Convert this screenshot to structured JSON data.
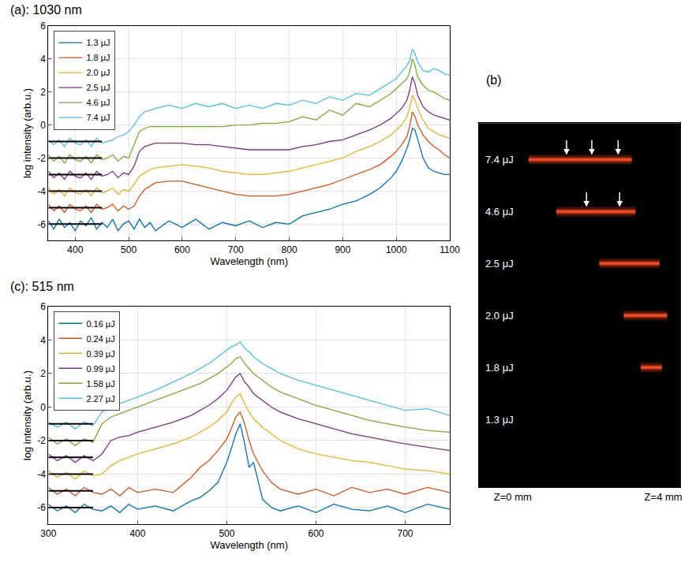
{
  "chart_data": [
    {
      "type": "line",
      "title": "(a): 1030 nm",
      "x_label": "Wavelength (nm)",
      "y_label": "log intensity (arb.u.)",
      "xlim": [
        350,
        1100
      ],
      "xticks": [
        400,
        500,
        600,
        700,
        800,
        900,
        1000,
        1100
      ],
      "ylim": [
        -7,
        6
      ],
      "yticks": [
        -6,
        -4,
        -2,
        0,
        2,
        4,
        6
      ],
      "grid": true,
      "legend": "upper left",
      "baseline_x": [
        350,
        450
      ],
      "x": [
        350,
        360,
        370,
        380,
        390,
        400,
        410,
        420,
        430,
        440,
        450,
        460,
        470,
        480,
        490,
        500,
        510,
        520,
        530,
        540,
        550,
        575,
        600,
        625,
        650,
        675,
        700,
        725,
        750,
        775,
        800,
        825,
        850,
        875,
        900,
        925,
        950,
        970,
        990,
        1000,
        1010,
        1020,
        1025,
        1030,
        1035,
        1040,
        1050,
        1060,
        1070,
        1080,
        1090,
        1100
      ],
      "series": [
        {
          "name": "1.3 μJ",
          "color": "#0072BD",
          "baseline": -6,
          "values": [
            -5.8,
            -6.3,
            -5.7,
            -6.2,
            -5.9,
            -6.4,
            -5.8,
            -6.1,
            -5.6,
            -6.3,
            -5.9,
            -6.2,
            -5.7,
            -6.4,
            -6.0,
            -5.8,
            -6.3,
            -5.7,
            -6.2,
            -5.9,
            -6.4,
            -5.8,
            -6.2,
            -5.7,
            -6.3,
            -5.9,
            -6.1,
            -5.8,
            -6.2,
            -5.9,
            -6.0,
            -5.5,
            -5.3,
            -5.1,
            -4.8,
            -4.6,
            -4.2,
            -3.8,
            -3.2,
            -2.8,
            -2.2,
            -1.4,
            -0.9,
            -0.2,
            -0.3,
            -0.9,
            -2.0,
            -2.6,
            -2.8,
            -2.9,
            -3.0,
            -3.0
          ]
        },
        {
          "name": "1.8 μJ",
          "color": "#D95319",
          "baseline": -5,
          "values": [
            -4.8,
            -5.2,
            -4.9,
            -5.3,
            -4.8,
            -5.1,
            -5.2,
            -4.9,
            -5.3,
            -4.8,
            -5.1,
            -5.0,
            -4.8,
            -5.2,
            -4.9,
            -5.1,
            -4.9,
            -4.3,
            -3.9,
            -3.7,
            -3.5,
            -3.4,
            -3.4,
            -3.6,
            -3.8,
            -4.0,
            -4.2,
            -4.3,
            -4.3,
            -4.3,
            -4.2,
            -4.0,
            -3.8,
            -3.6,
            -3.3,
            -3.0,
            -2.7,
            -2.4,
            -1.9,
            -1.6,
            -1.2,
            -0.7,
            -0.1,
            0.8,
            0.5,
            0.0,
            -0.6,
            -1.0,
            -1.3,
            -1.5,
            -1.8,
            -2.0
          ]
        },
        {
          "name": "2.0 μJ",
          "color": "#EDB120",
          "baseline": -4,
          "values": [
            -3.8,
            -4.2,
            -3.9,
            -4.3,
            -3.8,
            -4.1,
            -4.2,
            -3.9,
            -4.3,
            -3.8,
            -4.1,
            -4.0,
            -3.8,
            -4.2,
            -3.9,
            -4.0,
            -3.6,
            -3.1,
            -2.9,
            -2.7,
            -2.6,
            -2.5,
            -2.4,
            -2.5,
            -2.6,
            -2.8,
            -2.9,
            -3.0,
            -3.0,
            -2.9,
            -2.8,
            -2.6,
            -2.4,
            -2.2,
            -2.0,
            -1.6,
            -1.3,
            -1.0,
            -0.6,
            -0.3,
            0.0,
            0.5,
            1.0,
            1.8,
            1.5,
            1.0,
            0.3,
            -0.2,
            -0.4,
            -0.6,
            -0.7,
            -0.8
          ]
        },
        {
          "name": "2.5 μJ",
          "color": "#7E2F8E",
          "baseline": -3,
          "values": [
            -2.8,
            -3.2,
            -2.9,
            -3.3,
            -2.8,
            -3.1,
            -3.2,
            -2.9,
            -3.3,
            -2.8,
            -3.1,
            -3.0,
            -2.8,
            -3.2,
            -2.9,
            -3.0,
            -2.5,
            -1.6,
            -1.3,
            -1.2,
            -1.1,
            -1.1,
            -1.1,
            -1.2,
            -1.2,
            -1.3,
            -1.4,
            -1.5,
            -1.5,
            -1.5,
            -1.5,
            -1.3,
            -1.2,
            -1.0,
            -0.9,
            -0.6,
            -0.3,
            0.0,
            0.4,
            0.7,
            1.0,
            1.5,
            2.1,
            2.9,
            2.5,
            1.8,
            1.1,
            0.8,
            0.6,
            0.5,
            0.4,
            0.3
          ]
        },
        {
          "name": "4.6 μJ",
          "color": "#77AC30",
          "baseline": -2,
          "values": [
            -1.8,
            -2.2,
            -1.9,
            -2.3,
            -1.8,
            -2.1,
            -2.2,
            -1.9,
            -2.3,
            -1.8,
            -2.1,
            -2.0,
            -1.8,
            -2.2,
            -1.9,
            -2.0,
            -1.2,
            -0.4,
            -0.2,
            -0.1,
            -0.1,
            -0.1,
            -0.1,
            -0.1,
            -0.1,
            -0.1,
            0.0,
            0.0,
            0.1,
            0.1,
            0.2,
            0.5,
            0.3,
            0.9,
            0.6,
            1.3,
            1.1,
            1.5,
            1.9,
            2.2,
            2.5,
            2.8,
            3.2,
            4.0,
            3.6,
            2.9,
            2.4,
            2.1,
            2.0,
            1.8,
            1.6,
            1.5
          ]
        },
        {
          "name": "7.4 μJ",
          "color": "#4DBEEE",
          "baseline": -1,
          "values": [
            -0.9,
            -1.2,
            -0.9,
            -1.3,
            -0.8,
            -1.1,
            -1.2,
            -0.9,
            -1.3,
            -0.8,
            -1.1,
            -1.0,
            -0.9,
            -0.7,
            -0.6,
            -0.4,
            0.0,
            0.5,
            0.8,
            0.9,
            1.0,
            1.2,
            1.0,
            1.3,
            1.1,
            1.3,
            1.0,
            1.2,
            1.0,
            1.3,
            1.2,
            1.5,
            1.3,
            1.7,
            1.5,
            1.9,
            1.8,
            2.2,
            2.6,
            2.8,
            3.2,
            3.6,
            3.9,
            4.6,
            4.3,
            3.8,
            3.3,
            3.2,
            3.4,
            3.3,
            3.1,
            3.0
          ]
        }
      ]
    },
    {
      "type": "filament",
      "title": "(b)",
      "color": "#ff4a24",
      "xlim": [
        -0.9,
        4.45
      ],
      "xticks": [
        {
          "value": 0,
          "label": "Z=0 mm"
        },
        {
          "value": 4,
          "label": "Z=4 mm"
        }
      ],
      "tick_labels": "x",
      "rows": [
        {
          "label": "7.4 μJ",
          "start": 0.42,
          "end": 3.16,
          "arrows": [
            1.43,
            2.1,
            2.8
          ]
        },
        {
          "label": "4.6 μJ",
          "start": 1.16,
          "end": 3.26,
          "arrows": [
            1.96,
            2.84
          ]
        },
        {
          "label": "2.5 μJ",
          "start": 2.3,
          "end": 3.9,
          "arrows": []
        },
        {
          "label": "2.0 μJ",
          "start": 2.95,
          "end": 4.1,
          "arrows": []
        },
        {
          "label": "1.8 μJ",
          "start": 3.4,
          "end": 3.96,
          "arrows": []
        },
        {
          "label": "1.3 μJ",
          "start": null,
          "end": null,
          "arrows": []
        }
      ]
    },
    {
      "type": "line",
      "title": "(c): 515 nm",
      "x_label": "Wavelength (nm)",
      "y_label": "log intensity (arb.u.)",
      "xlim": [
        300,
        750
      ],
      "xticks": [
        300,
        400,
        500,
        600,
        700
      ],
      "ylim": [
        -7,
        6
      ],
      "yticks": [
        -6,
        -4,
        -2,
        0,
        2,
        4,
        6
      ],
      "grid": true,
      "legend": "upper left",
      "baseline_x": [
        300,
        350
      ],
      "x": [
        300,
        310,
        320,
        330,
        340,
        350,
        360,
        370,
        380,
        390,
        400,
        420,
        440,
        460,
        470,
        480,
        490,
        500,
        505,
        510,
        515,
        520,
        525,
        530,
        540,
        550,
        560,
        580,
        600,
        620,
        640,
        660,
        680,
        700,
        725,
        750
      ],
      "series": [
        {
          "name": "0.16 μJ",
          "color": "#0072BD",
          "baseline": -6,
          "values": [
            -5.8,
            -6.2,
            -5.9,
            -6.3,
            -5.8,
            -6.1,
            -6.2,
            -5.9,
            -6.3,
            -5.8,
            -6.1,
            -5.9,
            -6.2,
            -5.6,
            -5.4,
            -5.0,
            -4.5,
            -3.3,
            -2.5,
            -1.6,
            -1.0,
            -2.2,
            -3.6,
            -3.3,
            -5.5,
            -6.0,
            -6.2,
            -5.9,
            -6.3,
            -5.8,
            -6.1,
            -6.2,
            -5.9,
            -6.3,
            -5.8,
            -6.1
          ]
        },
        {
          "name": "0.24 μJ",
          "color": "#D95319",
          "baseline": -5,
          "values": [
            -4.8,
            -5.2,
            -4.9,
            -5.3,
            -4.8,
            -5.1,
            -5.2,
            -4.9,
            -5.3,
            -4.8,
            -5.1,
            -4.9,
            -5.1,
            -4.2,
            -3.6,
            -3.2,
            -2.6,
            -1.9,
            -1.3,
            -0.6,
            -0.3,
            -1.0,
            -2.0,
            -2.8,
            -3.8,
            -4.5,
            -4.9,
            -5.2,
            -4.9,
            -5.3,
            -4.8,
            -5.1,
            -4.9,
            -5.2,
            -4.8,
            -5.1
          ]
        },
        {
          "name": "0.39 μJ",
          "color": "#EDB120",
          "baseline": -4,
          "values": [
            -3.8,
            -4.2,
            -3.9,
            -4.3,
            -3.8,
            -4.1,
            -4.0,
            -3.5,
            -3.2,
            -3.0,
            -2.8,
            -2.5,
            -2.2,
            -1.8,
            -1.5,
            -1.2,
            -0.8,
            -0.3,
            0.2,
            0.6,
            0.8,
            0.2,
            -0.3,
            -0.7,
            -1.2,
            -1.6,
            -2.0,
            -2.5,
            -2.8,
            -3.0,
            -3.2,
            -3.3,
            -3.5,
            -3.7,
            -3.8,
            -4.0
          ]
        },
        {
          "name": "0.99 μJ",
          "color": "#7E2F8E",
          "baseline": -3,
          "values": [
            -2.8,
            -3.2,
            -2.9,
            -3.3,
            -2.9,
            -3.2,
            -2.8,
            -2.0,
            -1.8,
            -1.7,
            -1.5,
            -1.2,
            -0.9,
            -0.5,
            -0.2,
            0.1,
            0.5,
            1.0,
            1.4,
            1.8,
            2.0,
            1.5,
            1.2,
            0.8,
            0.4,
            0.0,
            -0.3,
            -0.7,
            -1.0,
            -1.3,
            -1.6,
            -1.8,
            -2.0,
            -2.2,
            -2.4,
            -2.6
          ]
        },
        {
          "name": "1.58 μJ",
          "color": "#77AC30",
          "baseline": -2,
          "values": [
            -1.8,
            -2.2,
            -1.9,
            -2.3,
            -1.9,
            -2.1,
            -1.0,
            -0.6,
            -0.4,
            -0.2,
            0.0,
            0.4,
            0.8,
            1.2,
            1.4,
            1.7,
            2.0,
            2.4,
            2.6,
            2.9,
            3.0,
            2.6,
            2.3,
            2.0,
            1.6,
            1.2,
            0.9,
            0.5,
            0.1,
            -0.2,
            -0.5,
            -0.8,
            -1.0,
            -1.2,
            -1.4,
            -1.5
          ]
        },
        {
          "name": "2.27 μJ",
          "color": "#4DBEEE",
          "baseline": -1,
          "values": [
            -0.9,
            -1.2,
            -0.9,
            -1.3,
            -0.9,
            -1.1,
            -0.3,
            0.0,
            0.2,
            0.4,
            0.6,
            1.0,
            1.5,
            2.0,
            2.3,
            2.6,
            3.0,
            3.4,
            3.6,
            3.7,
            3.9,
            3.5,
            3.3,
            3.0,
            2.6,
            2.3,
            2.0,
            1.6,
            1.3,
            1.0,
            0.7,
            0.4,
            0.1,
            -0.2,
            -0.1,
            -0.5
          ]
        }
      ]
    }
  ]
}
